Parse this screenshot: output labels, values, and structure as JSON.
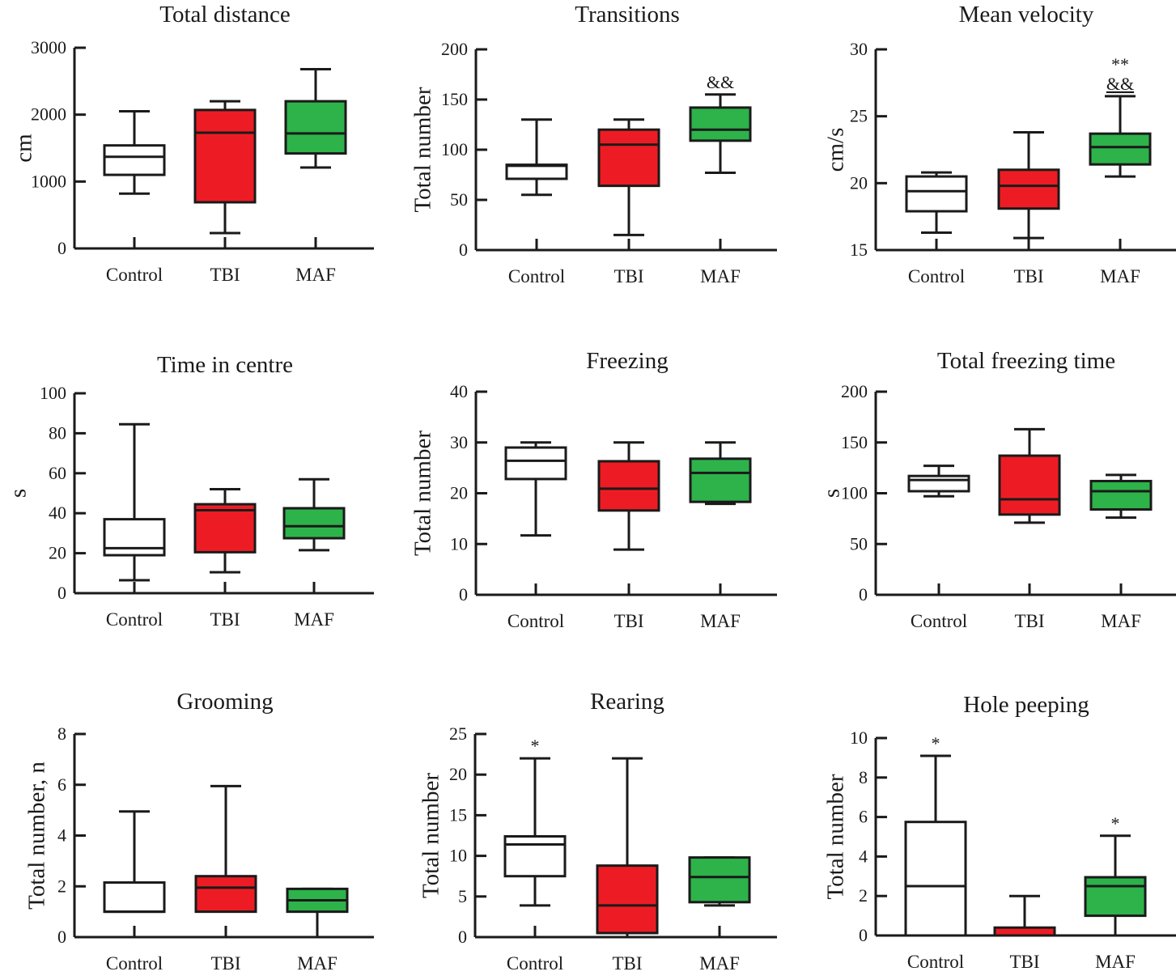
{
  "figure": {
    "colors": {
      "Control": "#ffffff",
      "TBI": "#ed1c24",
      "MAF": "#2db34a",
      "stroke": "#1a1a1a"
    }
  },
  "chart_data": [
    {
      "type": "box",
      "title": "Total distance",
      "ylabel": "cm",
      "ylim": [
        0,
        3000
      ],
      "yticks": [
        0,
        1000,
        2000,
        3000
      ],
      "categories": [
        "Control",
        "TBI",
        "MAF"
      ],
      "boxes": [
        {
          "group": "Control",
          "min": 820,
          "q1": 1100,
          "median": 1370,
          "q3": 1540,
          "max": 2050,
          "annotation": ""
        },
        {
          "group": "TBI",
          "min": 230,
          "q1": 690,
          "median": 1730,
          "q3": 2070,
          "max": 2200,
          "annotation": ""
        },
        {
          "group": "MAF",
          "min": 1210,
          "q1": 1420,
          "median": 1720,
          "q3": 2200,
          "max": 2680,
          "annotation": ""
        }
      ]
    },
    {
      "type": "box",
      "title": "Transitions",
      "ylabel": "Total number",
      "ylim": [
        0,
        200
      ],
      "yticks": [
        0,
        50,
        100,
        150,
        200
      ],
      "categories": [
        "Control",
        "TBI",
        "MAF"
      ],
      "boxes": [
        {
          "group": "Control",
          "min": 55,
          "q1": 71,
          "median": 84,
          "q3": 85,
          "max": 130,
          "annotation": ""
        },
        {
          "group": "TBI",
          "min": 15,
          "q1": 64,
          "median": 105,
          "q3": 120,
          "max": 130,
          "annotation": ""
        },
        {
          "group": "MAF",
          "min": 77,
          "q1": 109,
          "median": 120,
          "q3": 142,
          "max": 155,
          "annotation": "&&"
        }
      ]
    },
    {
      "type": "box",
      "title": "Mean velocity",
      "ylabel": "cm/s",
      "ylim": [
        15,
        30
      ],
      "yticks": [
        15,
        20,
        25,
        30
      ],
      "categories": [
        "Control",
        "TBI",
        "MAF"
      ],
      "boxes": [
        {
          "group": "Control",
          "min": 16.3,
          "q1": 17.9,
          "median": 19.4,
          "q3": 20.5,
          "max": 20.8,
          "annotation": ""
        },
        {
          "group": "TBI",
          "min": 15.9,
          "q1": 18.1,
          "median": 19.8,
          "q3": 21.0,
          "max": 23.8,
          "annotation": ""
        },
        {
          "group": "MAF",
          "min": 20.5,
          "q1": 21.4,
          "median": 22.7,
          "q3": 23.7,
          "max": 26.5,
          "annotation": "**\n&&"
        }
      ]
    },
    {
      "type": "box",
      "title": "Time in centre",
      "ylabel": "s",
      "ylim": [
        0,
        100
      ],
      "yticks": [
        0,
        20,
        40,
        60,
        80,
        100
      ],
      "categories": [
        "Control",
        "TBI",
        "MAF"
      ],
      "boxes": [
        {
          "group": "Control",
          "min": 6.5,
          "q1": 19,
          "median": 22.5,
          "q3": 37,
          "max": 84.5,
          "annotation": ""
        },
        {
          "group": "TBI",
          "min": 10.5,
          "q1": 20.5,
          "median": 41.5,
          "q3": 44.5,
          "max": 52,
          "annotation": ""
        },
        {
          "group": "MAF",
          "min": 21.5,
          "q1": 27.5,
          "median": 33.5,
          "q3": 42.5,
          "max": 57,
          "annotation": ""
        }
      ]
    },
    {
      "type": "box",
      "title": "Freezing",
      "ylabel": "Total number",
      "ylim": [
        0,
        40
      ],
      "yticks": [
        0,
        10,
        20,
        30,
        40
      ],
      "categories": [
        "Control",
        "TBI",
        "MAF"
      ],
      "boxes": [
        {
          "group": "Control",
          "min": 11.7,
          "q1": 22.8,
          "median": 26.4,
          "q3": 29.0,
          "max": 30,
          "annotation": ""
        },
        {
          "group": "TBI",
          "min": 8.9,
          "q1": 16.6,
          "median": 20.9,
          "q3": 26.3,
          "max": 30,
          "annotation": ""
        },
        {
          "group": "MAF",
          "min": 17.9,
          "q1": 18.3,
          "median": 24.0,
          "q3": 26.8,
          "max": 30,
          "annotation": ""
        }
      ]
    },
    {
      "type": "box",
      "title": "Total freezing time",
      "ylabel": "s",
      "ylim": [
        0,
        200
      ],
      "yticks": [
        0,
        50,
        100,
        150,
        200
      ],
      "categories": [
        "Control",
        "TBI",
        "MAF"
      ],
      "boxes": [
        {
          "group": "Control",
          "min": 97,
          "q1": 102,
          "median": 113,
          "q3": 117,
          "max": 127,
          "annotation": ""
        },
        {
          "group": "TBI",
          "min": 71,
          "q1": 79,
          "median": 94,
          "q3": 137,
          "max": 163,
          "annotation": ""
        },
        {
          "group": "MAF",
          "min": 76,
          "q1": 84,
          "median": 102,
          "q3": 112,
          "max": 118,
          "annotation": ""
        }
      ]
    },
    {
      "type": "box",
      "title": "Grooming",
      "ylabel": "Total number, n",
      "ylim": [
        0,
        8
      ],
      "yticks": [
        0,
        2,
        4,
        6,
        8
      ],
      "categories": [
        "Control",
        "TBI",
        "MAF"
      ],
      "boxes": [
        {
          "group": "Control",
          "min": 1.0,
          "q1": 1.0,
          "median": 1.0,
          "q3": 2.15,
          "max": 4.95,
          "annotation": ""
        },
        {
          "group": "TBI",
          "min": 1.0,
          "q1": 1.0,
          "median": 1.95,
          "q3": 2.4,
          "max": 5.95,
          "annotation": ""
        },
        {
          "group": "MAF",
          "min": 0,
          "q1": 1.0,
          "median": 1.45,
          "q3": 1.9,
          "max": 1.9,
          "annotation": ""
        }
      ]
    },
    {
      "type": "box",
      "title": "Rearing",
      "ylabel": "Total number",
      "ylim": [
        0,
        25
      ],
      "yticks": [
        0,
        5,
        10,
        15,
        20,
        25
      ],
      "categories": [
        "Control",
        "TBI",
        "MAF"
      ],
      "boxes": [
        {
          "group": "Control",
          "min": 3.9,
          "q1": 7.5,
          "median": 11.4,
          "q3": 12.4,
          "max": 22,
          "annotation": "*"
        },
        {
          "group": "TBI",
          "min": 0.5,
          "q1": 0.5,
          "median": 3.9,
          "q3": 8.8,
          "max": 22,
          "annotation": ""
        },
        {
          "group": "MAF",
          "min": 3.9,
          "q1": 4.3,
          "median": 7.4,
          "q3": 9.8,
          "max": 9.8,
          "annotation": ""
        }
      ]
    },
    {
      "type": "box",
      "title": "Hole peeping",
      "ylabel": "Total number",
      "ylim": [
        0,
        10
      ],
      "yticks": [
        0,
        2,
        4,
        6,
        8,
        10
      ],
      "categories": [
        "Control",
        "TBI",
        "MAF"
      ],
      "boxes": [
        {
          "group": "Control",
          "min": 0,
          "q1": 0,
          "median": 2.5,
          "q3": 5.75,
          "max": 9.1,
          "annotation": "*"
        },
        {
          "group": "TBI",
          "min": 0,
          "q1": 0,
          "median": 0,
          "q3": 0.4,
          "max": 2.0,
          "annotation": ""
        },
        {
          "group": "MAF",
          "min": 0,
          "q1": 1.0,
          "median": 2.5,
          "q3": 2.95,
          "max": 5.05,
          "annotation": "*"
        }
      ]
    }
  ]
}
